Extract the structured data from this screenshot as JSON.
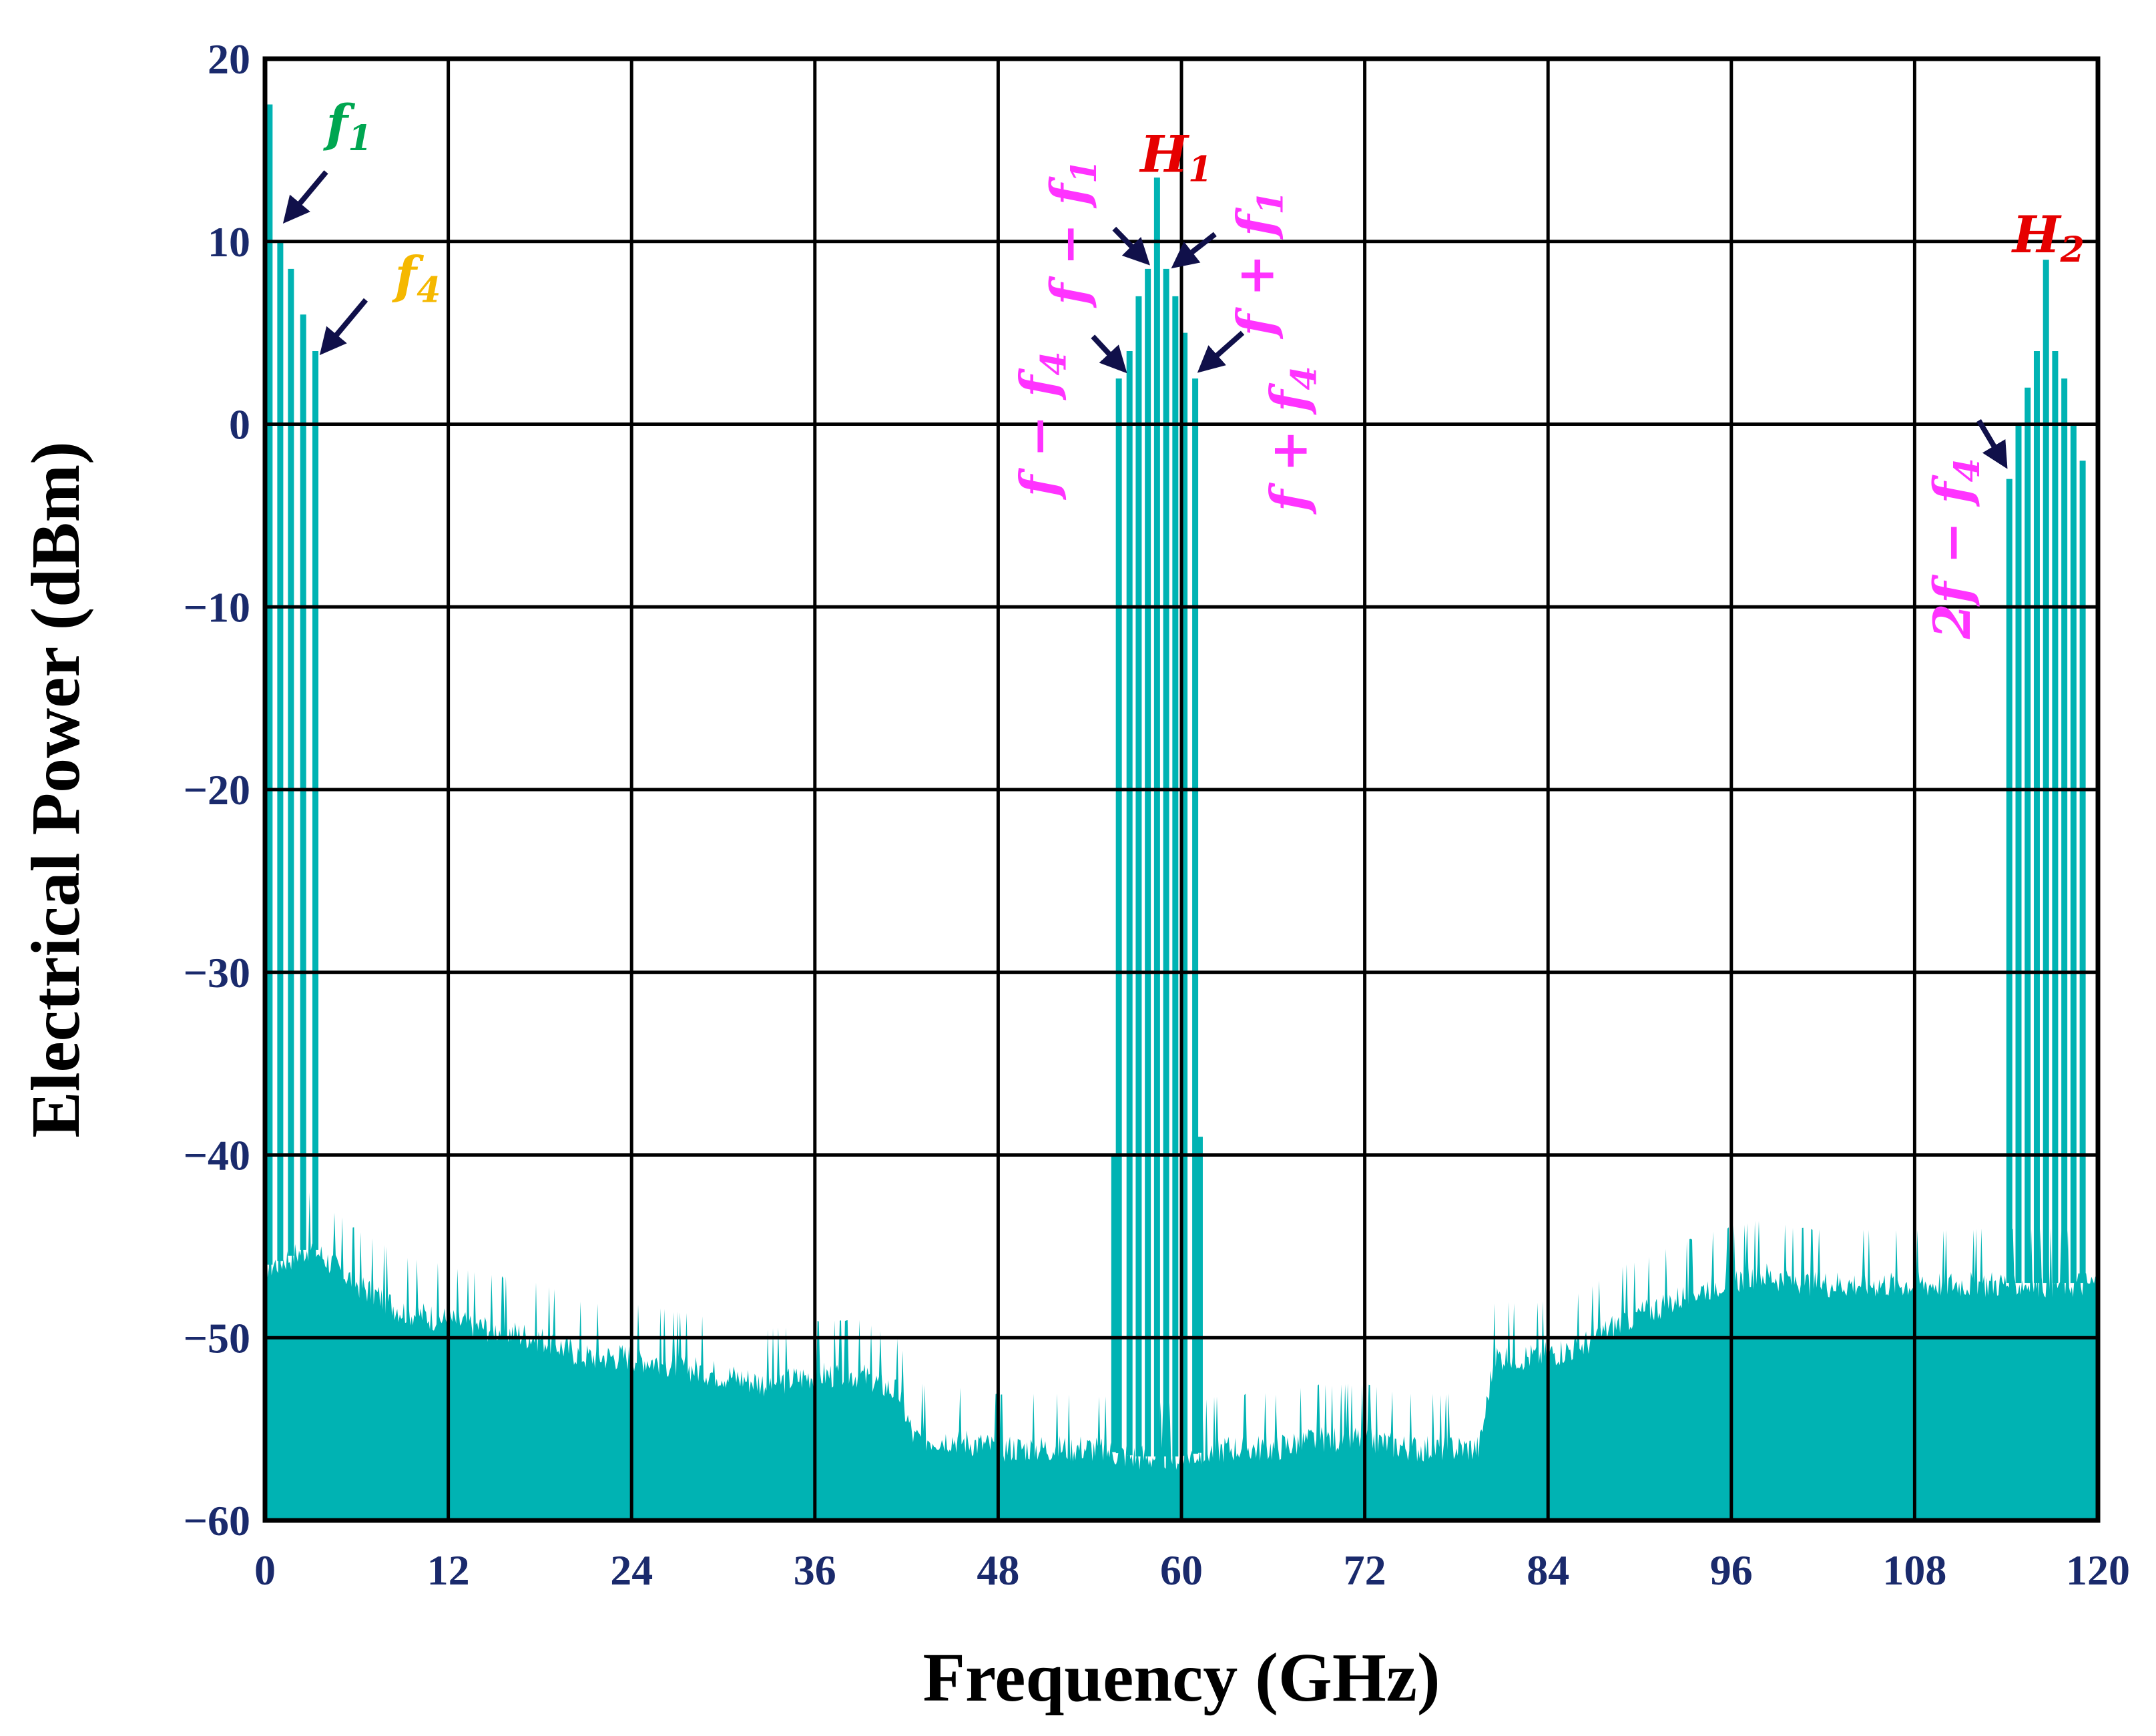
{
  "colors": {
    "spectrum": "#00b3b3",
    "grid": "#000000",
    "tick_text": "#1a2a6c",
    "arrow": "#10104a",
    "fundamental": "#00a651",
    "tone4": "#f5b800",
    "harmonic": "#e60000",
    "sideband": "#ff33ff"
  },
  "chart_data": {
    "type": "bar",
    "title": "",
    "xlabel": "Frequency (GHz)",
    "ylabel": "Electrical Power (dBm)",
    "xlim": [
      0,
      120
    ],
    "ylim": [
      -60,
      20
    ],
    "xticks": [
      0,
      12,
      24,
      36,
      48,
      60,
      72,
      84,
      96,
      108,
      120
    ],
    "yticks": [
      20,
      10,
      0,
      -10,
      -20,
      -30,
      -40,
      -50,
      -60
    ],
    "xtick_labels": [
      "0",
      "12",
      "24",
      "36",
      "48",
      "60",
      "72",
      "84",
      "96",
      "108",
      "120"
    ],
    "ytick_labels": [
      "20",
      "10",
      "0",
      "−10",
      "−20",
      "−30",
      "−40",
      "−50",
      "−60"
    ],
    "grid": true,
    "noise_floor": [
      {
        "x": 0.5,
        "y": -46
      },
      {
        "x": 3,
        "y": -45
      },
      {
        "x": 6,
        "y": -47
      },
      {
        "x": 9,
        "y": -48.5
      },
      {
        "x": 12,
        "y": -49
      },
      {
        "x": 15,
        "y": -49.5
      },
      {
        "x": 18,
        "y": -50
      },
      {
        "x": 21,
        "y": -51
      },
      {
        "x": 24,
        "y": -51
      },
      {
        "x": 27,
        "y": -51.5
      },
      {
        "x": 30,
        "y": -52
      },
      {
        "x": 33,
        "y": -52.5
      },
      {
        "x": 36,
        "y": -52
      },
      {
        "x": 39,
        "y": -52
      },
      {
        "x": 41.5,
        "y": -53
      },
      {
        "x": 42.5,
        "y": -55.5
      },
      {
        "x": 45,
        "y": -55.5
      },
      {
        "x": 48,
        "y": -56
      },
      {
        "x": 51,
        "y": -56
      },
      {
        "x": 54,
        "y": -56
      },
      {
        "x": 57,
        "y": -56.5
      },
      {
        "x": 60,
        "y": -56.5
      },
      {
        "x": 63,
        "y": -56
      },
      {
        "x": 66,
        "y": -56
      },
      {
        "x": 69,
        "y": -55.5
      },
      {
        "x": 72,
        "y": -55.5
      },
      {
        "x": 75,
        "y": -56
      },
      {
        "x": 78,
        "y": -56
      },
      {
        "x": 79.5,
        "y": -56
      },
      {
        "x": 80.5,
        "y": -51
      },
      {
        "x": 83,
        "y": -51
      },
      {
        "x": 86,
        "y": -50.5
      },
      {
        "x": 89,
        "y": -49
      },
      {
        "x": 92,
        "y": -48
      },
      {
        "x": 95,
        "y": -47
      },
      {
        "x": 98,
        "y": -46.5
      },
      {
        "x": 101,
        "y": -47
      },
      {
        "x": 104,
        "y": -47
      },
      {
        "x": 107,
        "y": -47
      },
      {
        "x": 110,
        "y": -47
      },
      {
        "x": 113,
        "y": -47
      },
      {
        "x": 116,
        "y": -47
      },
      {
        "x": 118,
        "y": -47
      },
      {
        "x": 120,
        "y": -47
      }
    ],
    "series": [
      {
        "name": "spectral lines",
        "points": [
          {
            "x": 0.3,
            "y": 17.5
          },
          {
            "x": 1.0,
            "y": 10
          },
          {
            "x": 1.7,
            "y": 8.5
          },
          {
            "x": 2.5,
            "y": 6
          },
          {
            "x": 3.3,
            "y": 4
          },
          {
            "x": 55.6,
            "y": -40
          },
          {
            "x": 55.9,
            "y": 2.5
          },
          {
            "x": 56.6,
            "y": 4
          },
          {
            "x": 57.2,
            "y": 7
          },
          {
            "x": 57.8,
            "y": 8.5
          },
          {
            "x": 58.4,
            "y": 13.5
          },
          {
            "x": 59.0,
            "y": 8.5
          },
          {
            "x": 59.6,
            "y": 7
          },
          {
            "x": 60.2,
            "y": 5
          },
          {
            "x": 60.9,
            "y": 2.5
          },
          {
            "x": 61.2,
            "y": -39
          },
          {
            "x": 114.2,
            "y": -3
          },
          {
            "x": 114.8,
            "y": 0
          },
          {
            "x": 115.4,
            "y": 2
          },
          {
            "x": 116.0,
            "y": 4
          },
          {
            "x": 116.6,
            "y": 9
          },
          {
            "x": 117.2,
            "y": 4
          },
          {
            "x": 117.8,
            "y": 2.5
          },
          {
            "x": 118.4,
            "y": 0
          },
          {
            "x": 119.0,
            "y": -2
          }
        ]
      }
    ],
    "annotations": [
      {
        "id": "f1",
        "main": "f",
        "sub": "1",
        "color": "fundamental",
        "x": 4.0,
        "y": 15.5,
        "rotate": 0,
        "arrow": {
          "from": [
            4.0,
            13.8
          ],
          "to": [
            1.4,
            11.2
          ]
        }
      },
      {
        "id": "f4",
        "main": "f",
        "sub": "4",
        "color": "tone4",
        "x": 8.5,
        "y": 7.2,
        "rotate": 0,
        "arrow": {
          "from": [
            6.6,
            6.8
          ],
          "to": [
            3.8,
            4.0
          ]
        }
      },
      {
        "id": "H1",
        "main": "H",
        "sub": "1",
        "color": "harmonic",
        "x": 57.3,
        "y": 13.8,
        "rotate": 0,
        "arrow": null
      },
      {
        "id": "H2",
        "main": "H",
        "sub": "2",
        "color": "harmonic",
        "x": 114.4,
        "y": 9.4,
        "rotate": 0,
        "arrow": null
      },
      {
        "id": "f-f4",
        "main": "f − f",
        "sub": "4",
        "color": "sideband",
        "x": 51.8,
        "y": 0,
        "rotate": -90,
        "arrow": {
          "from": [
            54.2,
            4.8
          ],
          "to": [
            56.2,
            3.0
          ]
        }
      },
      {
        "id": "f-f1",
        "main": "f − f",
        "sub": "1",
        "color": "sideband",
        "x": 53.8,
        "y": 10.5,
        "rotate": -90,
        "arrow": {
          "from": [
            55.6,
            10.7
          ],
          "to": [
            57.7,
            8.9
          ]
        }
      },
      {
        "id": "f+f1",
        "main": "f + f",
        "sub": "1",
        "color": "sideband",
        "x": 66.0,
        "y": 8.8,
        "rotate": -90,
        "arrow": {
          "from": [
            62.2,
            10.4
          ],
          "to": [
            59.6,
            8.7
          ]
        }
      },
      {
        "id": "f+f4",
        "main": "f + f",
        "sub": "4",
        "color": "sideband",
        "x": 68.2,
        "y": -0.8,
        "rotate": -90,
        "arrow": {
          "from": [
            64.0,
            5.0
          ],
          "to": [
            61.3,
            3.0
          ]
        }
      },
      {
        "id": "2f-f4",
        "main": "2f − f",
        "sub": "4",
        "color": "sideband",
        "x": 111.6,
        "y": -6.8,
        "rotate": -90,
        "arrow": {
          "from": [
            112.2,
            0.2
          ],
          "to": [
            113.9,
            -2.2
          ]
        }
      }
    ]
  }
}
